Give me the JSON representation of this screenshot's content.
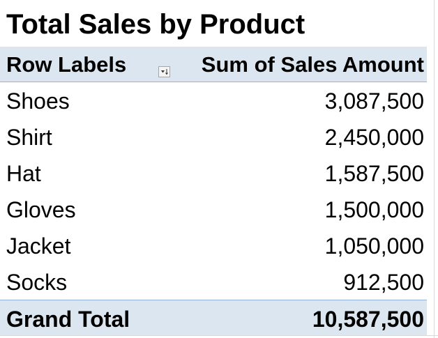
{
  "title": "Total Sales by Product",
  "pivot": {
    "header": {
      "row_labels": "Row Labels",
      "value_field": "Sum of Sales Amount",
      "filter_icon": "sort-descending-filter-icon"
    },
    "rows": [
      {
        "label": "Shoes",
        "value": "3,087,500"
      },
      {
        "label": "Shirt",
        "value": "2,450,000"
      },
      {
        "label": "Hat",
        "value": "1,587,500"
      },
      {
        "label": "Gloves",
        "value": "1,500,000"
      },
      {
        "label": "Jacket",
        "value": "1,050,000"
      },
      {
        "label": "Socks",
        "value": "912,500"
      }
    ],
    "grand_total": {
      "label": "Grand Total",
      "value": "10,587,500"
    }
  },
  "colors": {
    "header_fill": "#dce6f1",
    "header_border": "#95b3d7",
    "text": "#000000"
  }
}
